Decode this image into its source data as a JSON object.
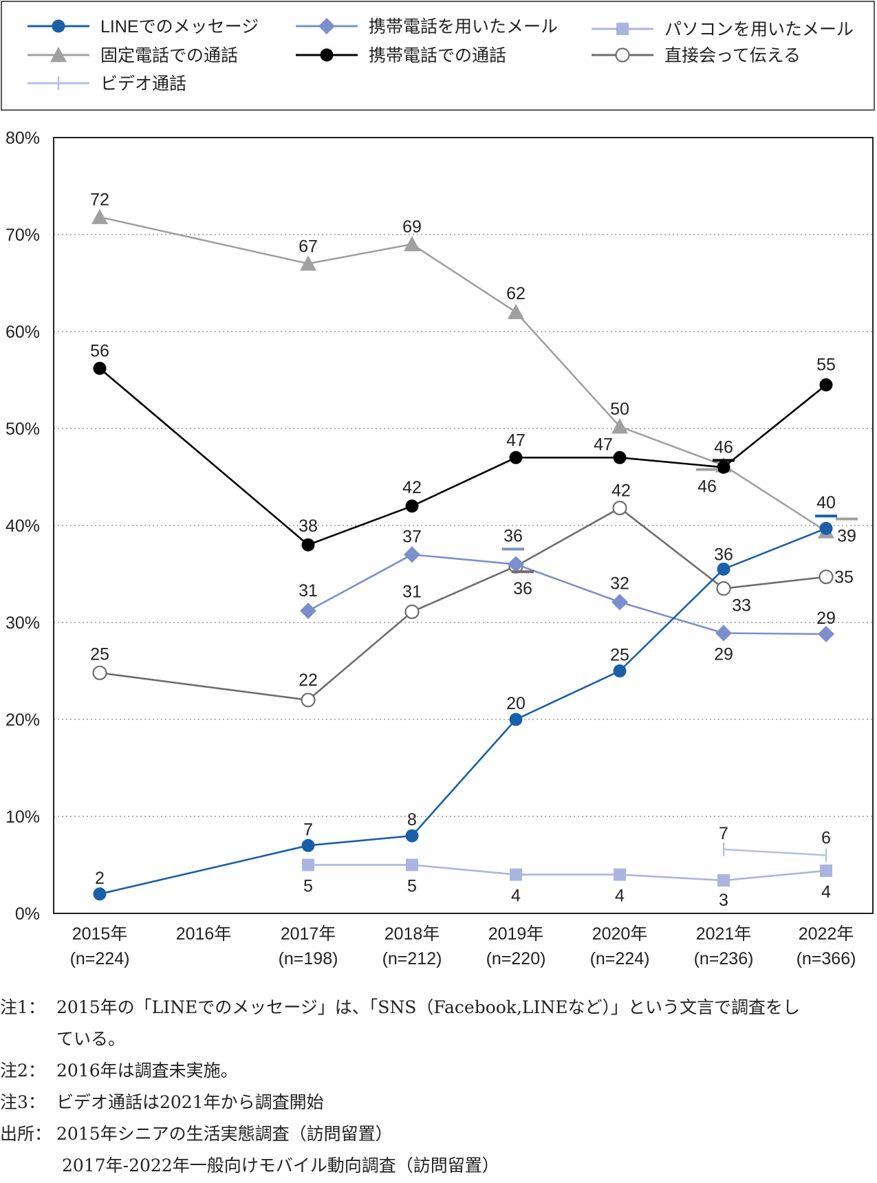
{
  "chart_data": {
    "type": "line",
    "categories": [
      "2015年 (n=224)",
      "2016年",
      "2017年 (n=198)",
      "2018年 (n=212)",
      "2019年 (n=220)",
      "2020年 (n=224)",
      "2021年 (n=236)",
      "2022年 (n=366)"
    ],
    "x_labels": [
      {
        "year": "2015年",
        "n": "(n=224)"
      },
      {
        "year": "2016年",
        "n": ""
      },
      {
        "year": "2017年",
        "n": "(n=198)"
      },
      {
        "year": "2018年",
        "n": "(n=212)"
      },
      {
        "year": "2019年",
        "n": "(n=220)"
      },
      {
        "year": "2020年",
        "n": "(n=224)"
      },
      {
        "year": "2021年",
        "n": "(n=236)"
      },
      {
        "year": "2022年",
        "n": "(n=366)"
      }
    ],
    "y_ticks": [
      "0%",
      "10%",
      "20%",
      "30%",
      "40%",
      "50%",
      "60%",
      "70%",
      "80%"
    ],
    "ylim": [
      0,
      80
    ],
    "grid": true,
    "legend_position": "top",
    "series": [
      {
        "name": "LINEでのメッセージ",
        "marker": "circle",
        "color": "#1a5fa8",
        "values": [
          2,
          null,
          7,
          8,
          20,
          25,
          36,
          40
        ],
        "plot": [
          2,
          null,
          7,
          8,
          20,
          25,
          35.5,
          39.7
        ],
        "labels": [
          "2",
          null,
          "7",
          "8",
          "20",
          "25",
          "36",
          "40"
        ]
      },
      {
        "name": "携帯電話を用いたメール",
        "marker": "diamond",
        "color": "#7b8fcc",
        "values": [
          null,
          null,
          31,
          37,
          36,
          32,
          29,
          29
        ],
        "plot": [
          null,
          null,
          31.2,
          37,
          36,
          32.1,
          28.9,
          28.8
        ],
        "labels": [
          null,
          null,
          "31",
          "37",
          "36",
          "32",
          "29",
          "29"
        ]
      },
      {
        "name": "パソコンを用いたメール",
        "marker": "square",
        "color": "#a9b5e0",
        "values": [
          null,
          null,
          5,
          5,
          4,
          4,
          3,
          4
        ],
        "plot": [
          null,
          null,
          5,
          5,
          4,
          4,
          3.4,
          4.4
        ],
        "labels": [
          null,
          null,
          "5",
          "5",
          "4",
          "4",
          "3",
          "4"
        ]
      },
      {
        "name": "固定電話での通話",
        "marker": "triangle",
        "color": "#a0a0a0",
        "values": [
          72,
          null,
          67,
          69,
          62,
          50,
          46,
          39
        ],
        "plot": [
          71.8,
          null,
          67,
          69,
          62,
          50.2,
          46.2,
          39.4
        ],
        "labels": [
          "72",
          null,
          "67",
          "69",
          "62",
          "50",
          "46",
          "39"
        ]
      },
      {
        "name": "携帯電話での通話",
        "marker": "circle",
        "color": "#000000",
        "values": [
          56,
          null,
          38,
          42,
          47,
          47,
          46,
          55
        ],
        "plot": [
          56.2,
          null,
          38,
          42,
          47,
          47,
          46,
          54.5
        ],
        "labels": [
          "56",
          null,
          "38",
          "42",
          "47",
          "47",
          "46",
          "55"
        ]
      },
      {
        "name": "直接会って伝える",
        "marker": "open-circle",
        "color": "#6d6d6d",
        "values": [
          25,
          null,
          22,
          31,
          36,
          42,
          33,
          35
        ],
        "plot": [
          24.8,
          null,
          22,
          31.1,
          35.8,
          41.8,
          33.5,
          34.7
        ],
        "labels": [
          "25",
          null,
          "22",
          "31",
          "36",
          "42",
          "33",
          "35"
        ]
      },
      {
        "name": "ビデオ通話",
        "marker": "tick",
        "color": "#b5c0e6",
        "values": [
          null,
          null,
          null,
          null,
          null,
          null,
          7,
          6
        ],
        "plot": [
          null,
          null,
          null,
          null,
          null,
          null,
          6.6,
          6
        ],
        "labels": [
          null,
          null,
          null,
          null,
          null,
          null,
          "7",
          "6"
        ]
      }
    ]
  },
  "notes": [
    {
      "label": "注1：",
      "text": "2015年の「LINEでのメッセージ」は、「SNS（Facebook,LINEなど）」という文言で調査をし"
    },
    {
      "label": "",
      "text": "ている。"
    },
    {
      "label": "注2：",
      "text": "2016年は調査未実施。"
    },
    {
      "label": "注3：",
      "text": "ビデオ通話は2021年から調査開始"
    },
    {
      "label": "出所：",
      "text": "2015年シニアの生活実態調査（訪問留置）"
    },
    {
      "label": "",
      "text": "2017年-2022年一般向けモバイル動向調査（訪問留置）"
    }
  ]
}
